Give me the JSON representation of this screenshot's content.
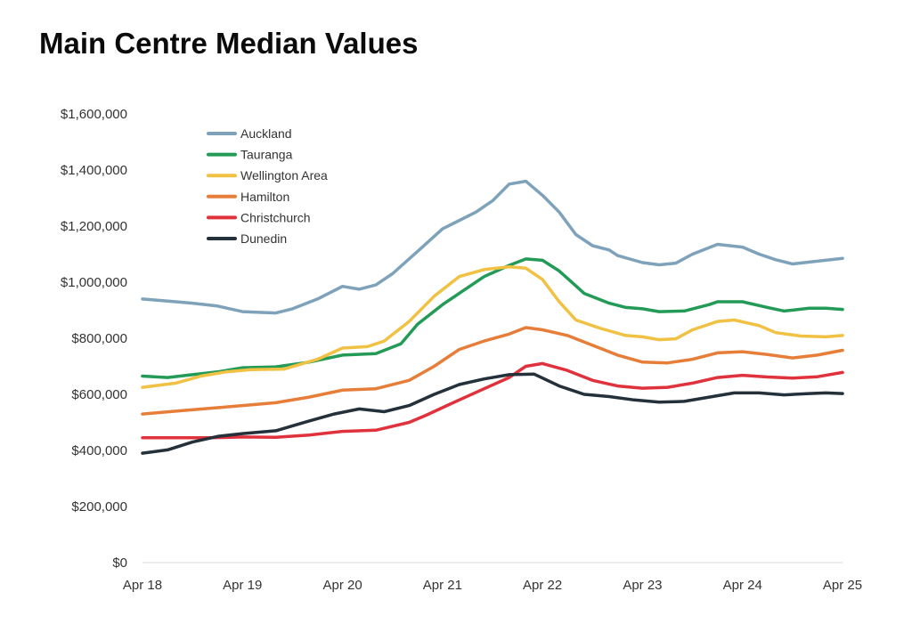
{
  "chart_data": {
    "type": "line",
    "title": "Main Centre Median Values",
    "xlabel": "",
    "ylabel": "",
    "ylim": [
      0,
      1600000
    ],
    "x_ticks": [
      "Apr 18",
      "Apr 19",
      "Apr 20",
      "Apr 21",
      "Apr 22",
      "Apr 23",
      "Apr 24",
      "Apr 25"
    ],
    "y_ticks": [
      "$0",
      "$200,000",
      "$400,000",
      "$600,000",
      "$800,000",
      "$1,000,000",
      "$1,200,000",
      "$1,400,000",
      "$1,600,000"
    ],
    "y_tick_values": [
      0,
      200000,
      400000,
      600000,
      800000,
      1000000,
      1200000,
      1400000,
      1600000
    ],
    "grid": false,
    "legend_position": "top-left",
    "x_range": [
      "2018-04",
      "2025-04"
    ],
    "x_step": "month",
    "series": [
      {
        "name": "Auckland",
        "color": "#7fa2bb",
        "points": [
          [
            "2018-04",
            940000
          ],
          [
            "2018-08",
            930000
          ],
          [
            "2018-10",
            925000
          ],
          [
            "2019-01",
            915000
          ],
          [
            "2019-04",
            895000
          ],
          [
            "2019-08",
            890000
          ],
          [
            "2019-10",
            905000
          ],
          [
            "2020-01",
            940000
          ],
          [
            "2020-04",
            985000
          ],
          [
            "2020-06",
            975000
          ],
          [
            "2020-08",
            990000
          ],
          [
            "2020-10",
            1030000
          ],
          [
            "2021-01",
            1110000
          ],
          [
            "2021-04",
            1190000
          ],
          [
            "2021-08",
            1250000
          ],
          [
            "2021-10",
            1290000
          ],
          [
            "2021-12",
            1350000
          ],
          [
            "2022-02",
            1360000
          ],
          [
            "2022-04",
            1310000
          ],
          [
            "2022-06",
            1250000
          ],
          [
            "2022-08",
            1170000
          ],
          [
            "2022-10",
            1130000
          ],
          [
            "2022-12",
            1115000
          ],
          [
            "2023-01",
            1095000
          ],
          [
            "2023-04",
            1070000
          ],
          [
            "2023-06",
            1062000
          ],
          [
            "2023-08",
            1068000
          ],
          [
            "2023-10",
            1100000
          ],
          [
            "2024-01",
            1135000
          ],
          [
            "2024-04",
            1125000
          ],
          [
            "2024-06",
            1100000
          ],
          [
            "2024-08",
            1080000
          ],
          [
            "2024-10",
            1065000
          ],
          [
            "2025-01",
            1075000
          ],
          [
            "2025-04",
            1085000
          ]
        ]
      },
      {
        "name": "Tauranga",
        "color": "#239b56",
        "points": [
          [
            "2018-04",
            665000
          ],
          [
            "2018-07",
            660000
          ],
          [
            "2018-10",
            670000
          ],
          [
            "2019-01",
            680000
          ],
          [
            "2019-04",
            695000
          ],
          [
            "2019-08",
            698000
          ],
          [
            "2019-12",
            715000
          ],
          [
            "2020-04",
            740000
          ],
          [
            "2020-08",
            745000
          ],
          [
            "2020-11",
            780000
          ],
          [
            "2021-01",
            850000
          ],
          [
            "2021-04",
            920000
          ],
          [
            "2021-06",
            960000
          ],
          [
            "2021-09",
            1020000
          ],
          [
            "2021-12",
            1060000
          ],
          [
            "2022-02",
            1083000
          ],
          [
            "2022-04",
            1078000
          ],
          [
            "2022-06",
            1040000
          ],
          [
            "2022-09",
            960000
          ],
          [
            "2022-12",
            925000
          ],
          [
            "2023-02",
            910000
          ],
          [
            "2023-04",
            905000
          ],
          [
            "2023-06",
            895000
          ],
          [
            "2023-09",
            897000
          ],
          [
            "2023-12",
            920000
          ],
          [
            "2024-01",
            930000
          ],
          [
            "2024-04",
            930000
          ],
          [
            "2024-07",
            910000
          ],
          [
            "2024-09",
            897000
          ],
          [
            "2024-12",
            907000
          ],
          [
            "2025-02",
            907000
          ],
          [
            "2025-04",
            903000
          ]
        ]
      },
      {
        "name": "Wellington Area",
        "color": "#f0c143",
        "points": [
          [
            "2018-04",
            625000
          ],
          [
            "2018-08",
            640000
          ],
          [
            "2018-11",
            665000
          ],
          [
            "2019-02",
            680000
          ],
          [
            "2019-05",
            688000
          ],
          [
            "2019-09",
            690000
          ],
          [
            "2020-01",
            725000
          ],
          [
            "2020-04",
            765000
          ],
          [
            "2020-07",
            770000
          ],
          [
            "2020-09",
            790000
          ],
          [
            "2020-12",
            860000
          ],
          [
            "2021-03",
            950000
          ],
          [
            "2021-06",
            1020000
          ],
          [
            "2021-09",
            1045000
          ],
          [
            "2021-12",
            1055000
          ],
          [
            "2022-02",
            1050000
          ],
          [
            "2022-04",
            1010000
          ],
          [
            "2022-06",
            930000
          ],
          [
            "2022-08",
            865000
          ],
          [
            "2022-11",
            835000
          ],
          [
            "2023-02",
            810000
          ],
          [
            "2023-04",
            805000
          ],
          [
            "2023-06",
            795000
          ],
          [
            "2023-08",
            798000
          ],
          [
            "2023-10",
            830000
          ],
          [
            "2024-01",
            860000
          ],
          [
            "2024-03",
            865000
          ],
          [
            "2024-06",
            845000
          ],
          [
            "2024-08",
            820000
          ],
          [
            "2024-11",
            808000
          ],
          [
            "2025-02",
            805000
          ],
          [
            "2025-04",
            810000
          ]
        ]
      },
      {
        "name": "Hamilton",
        "color": "#e67e3a",
        "points": [
          [
            "2018-04",
            530000
          ],
          [
            "2018-08",
            540000
          ],
          [
            "2018-12",
            550000
          ],
          [
            "2019-04",
            560000
          ],
          [
            "2019-08",
            570000
          ],
          [
            "2019-12",
            590000
          ],
          [
            "2020-04",
            615000
          ],
          [
            "2020-08",
            620000
          ],
          [
            "2020-12",
            650000
          ],
          [
            "2021-03",
            700000
          ],
          [
            "2021-06",
            760000
          ],
          [
            "2021-09",
            790000
          ],
          [
            "2021-12",
            815000
          ],
          [
            "2022-02",
            838000
          ],
          [
            "2022-04",
            830000
          ],
          [
            "2022-07",
            810000
          ],
          [
            "2022-10",
            775000
          ],
          [
            "2023-01",
            740000
          ],
          [
            "2023-04",
            715000
          ],
          [
            "2023-07",
            712000
          ],
          [
            "2023-10",
            725000
          ],
          [
            "2024-01",
            748000
          ],
          [
            "2024-04",
            752000
          ],
          [
            "2024-07",
            742000
          ],
          [
            "2024-10",
            730000
          ],
          [
            "2025-01",
            740000
          ],
          [
            "2025-04",
            757000
          ]
        ]
      },
      {
        "name": "Christchurch",
        "color": "#e0323c",
        "points": [
          [
            "2018-04",
            445000
          ],
          [
            "2018-12",
            445000
          ],
          [
            "2019-04",
            448000
          ],
          [
            "2019-08",
            447000
          ],
          [
            "2019-12",
            455000
          ],
          [
            "2020-04",
            468000
          ],
          [
            "2020-08",
            472000
          ],
          [
            "2020-12",
            500000
          ],
          [
            "2021-02",
            525000
          ],
          [
            "2021-06",
            580000
          ],
          [
            "2021-09",
            620000
          ],
          [
            "2021-12",
            660000
          ],
          [
            "2022-02",
            700000
          ],
          [
            "2022-04",
            710000
          ],
          [
            "2022-07",
            685000
          ],
          [
            "2022-10",
            650000
          ],
          [
            "2023-01",
            630000
          ],
          [
            "2023-04",
            622000
          ],
          [
            "2023-07",
            625000
          ],
          [
            "2023-10",
            640000
          ],
          [
            "2024-01",
            660000
          ],
          [
            "2024-04",
            668000
          ],
          [
            "2024-07",
            662000
          ],
          [
            "2024-10",
            658000
          ],
          [
            "2025-01",
            663000
          ],
          [
            "2025-04",
            678000
          ]
        ]
      },
      {
        "name": "Dunedin",
        "color": "#24303a",
        "points": [
          [
            "2018-04",
            390000
          ],
          [
            "2018-07",
            402000
          ],
          [
            "2018-10",
            430000
          ],
          [
            "2019-01",
            450000
          ],
          [
            "2019-04",
            460000
          ],
          [
            "2019-08",
            470000
          ],
          [
            "2019-12",
            505000
          ],
          [
            "2020-03",
            530000
          ],
          [
            "2020-06",
            548000
          ],
          [
            "2020-09",
            538000
          ],
          [
            "2020-12",
            560000
          ],
          [
            "2021-03",
            600000
          ],
          [
            "2021-06",
            635000
          ],
          [
            "2021-09",
            655000
          ],
          [
            "2021-12",
            670000
          ],
          [
            "2022-03",
            672000
          ],
          [
            "2022-06",
            630000
          ],
          [
            "2022-09",
            600000
          ],
          [
            "2022-12",
            592000
          ],
          [
            "2023-03",
            580000
          ],
          [
            "2023-06",
            572000
          ],
          [
            "2023-09",
            575000
          ],
          [
            "2023-12",
            590000
          ],
          [
            "2024-03",
            605000
          ],
          [
            "2024-06",
            605000
          ],
          [
            "2024-09",
            598000
          ],
          [
            "2024-12",
            603000
          ],
          [
            "2025-02",
            605000
          ],
          [
            "2025-04",
            603000
          ]
        ]
      }
    ]
  }
}
